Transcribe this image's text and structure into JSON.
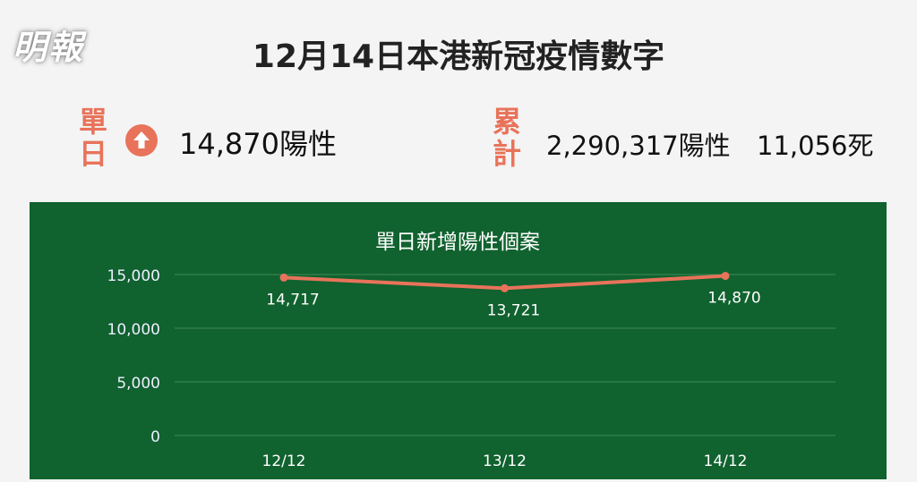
{
  "logo": "明報",
  "title": "12月14日本港新冠疫情數字",
  "daily": {
    "label_1": "單",
    "label_2": "日",
    "icon": "arrow-up-circle-icon",
    "value": "14,870陽性"
  },
  "cumulative": {
    "label_1": "累",
    "label_2": "計",
    "positive": "2,290,317陽性",
    "deaths": "11,056死"
  },
  "colors": {
    "accent": "#e8735a",
    "chart_bg": "#10622f",
    "page_bg": "#f4f4f4"
  },
  "chart_data": {
    "type": "line",
    "title": "單日新增陽性個案",
    "categories": [
      "12/12",
      "13/12",
      "14/12"
    ],
    "values": [
      14717,
      13721,
      14870
    ],
    "data_labels": [
      "14,717",
      "13,721",
      "14,870"
    ],
    "yticks": [
      "0",
      "5,000",
      "10,000",
      "15,000"
    ],
    "ylim": [
      0,
      15000
    ],
    "grid": true
  }
}
